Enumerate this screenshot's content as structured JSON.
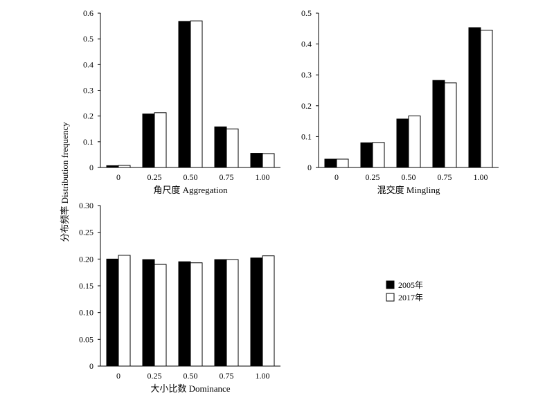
{
  "figure": {
    "shared_ylabel": "分布频率 Distribution frequency"
  },
  "legend": {
    "position": "right",
    "entries": [
      {
        "label": "2005年",
        "color": "#000000"
      },
      {
        "label": "2017年",
        "color": "#ffffff"
      }
    ]
  },
  "chart_data": [
    {
      "type": "bar",
      "xlabel": "角尺度 Aggregation",
      "categories": [
        "0",
        "0.25",
        "0.50",
        "0.75",
        "1.00"
      ],
      "ylim": [
        0,
        0.6
      ],
      "yticks": [
        "0",
        "0.1",
        "0.2",
        "0.3",
        "0.4",
        "0.5",
        "0.6"
      ],
      "series": [
        {
          "name": "2005年",
          "color": "#000000",
          "values": [
            0.007,
            0.208,
            0.568,
            0.158,
            0.055
          ]
        },
        {
          "name": "2017年",
          "color": "#ffffff",
          "values": [
            0.008,
            0.213,
            0.57,
            0.15,
            0.054
          ]
        }
      ]
    },
    {
      "type": "bar",
      "xlabel": "混交度 Mingling",
      "categories": [
        "0",
        "0.25",
        "0.50",
        "0.75",
        "1.00"
      ],
      "ylim": [
        0,
        0.5
      ],
      "yticks": [
        "0",
        "0.1",
        "0.2",
        "0.3",
        "0.4",
        "0.5"
      ],
      "series": [
        {
          "name": "2005年",
          "color": "#000000",
          "values": [
            0.027,
            0.08,
            0.157,
            0.282,
            0.453
          ]
        },
        {
          "name": "2017年",
          "color": "#ffffff",
          "values": [
            0.027,
            0.081,
            0.167,
            0.274,
            0.445
          ]
        }
      ]
    },
    {
      "type": "bar",
      "xlabel": "大小比数 Dominance",
      "categories": [
        "0",
        "0.25",
        "0.50",
        "0.75",
        "1.00"
      ],
      "ylim": [
        0,
        0.3
      ],
      "yticks": [
        "0",
        "0.05",
        "0.10",
        "0.15",
        "0.20",
        "0.25",
        "0.30"
      ],
      "series": [
        {
          "name": "2005年",
          "color": "#000000",
          "values": [
            0.2,
            0.199,
            0.195,
            0.199,
            0.202
          ]
        },
        {
          "name": "2017年",
          "color": "#ffffff",
          "values": [
            0.207,
            0.19,
            0.193,
            0.199,
            0.206
          ]
        }
      ]
    }
  ]
}
